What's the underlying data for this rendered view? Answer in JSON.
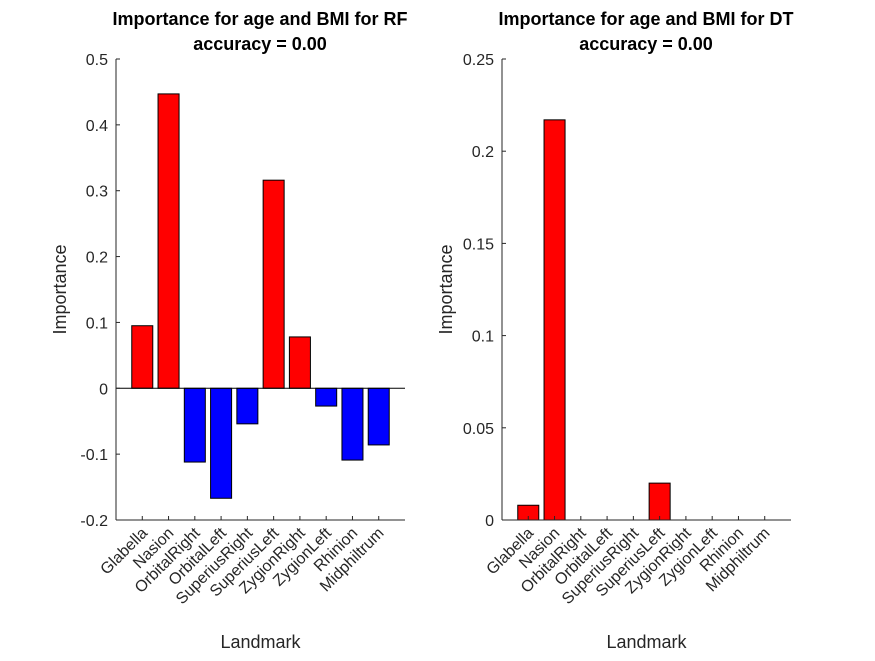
{
  "colors": {
    "positive": "#ff0000",
    "negative": "#0000ff",
    "axis": "#262626"
  },
  "chart_data": [
    {
      "type": "bar",
      "title": "Importance for age and BMI for RF",
      "subtitle": "accuracy = 0.00",
      "xlabel": "Landmark",
      "ylabel": "Importance",
      "categories": [
        "Glabella",
        "Nasion",
        "OrbitalRight",
        "OrbitalLeft",
        "SuperiusRight",
        "SuperiusLeft",
        "ZygionRight",
        "ZygionLeft",
        "Rhinion",
        "Midphiltrum"
      ],
      "values": [
        0.095,
        0.447,
        -0.112,
        -0.167,
        -0.054,
        0.316,
        0.078,
        -0.027,
        -0.109,
        -0.086
      ],
      "ylim": [
        -0.2,
        0.5
      ],
      "yticks": [
        -0.2,
        -0.1,
        0,
        0.1,
        0.2,
        0.3,
        0.4,
        0.5
      ],
      "ytick_labels": [
        "-0.2",
        "-0.1",
        "0",
        "0.1",
        "0.2",
        "0.3",
        "0.4",
        "0.5"
      ],
      "grid": false,
      "legend": "none"
    },
    {
      "type": "bar",
      "title": "Importance for age and BMI for DT",
      "subtitle": "accuracy = 0.00",
      "xlabel": "Landmark",
      "ylabel": "Importance",
      "categories": [
        "Glabella",
        "Nasion",
        "OrbitalRight",
        "OrbitalLeft",
        "SuperiusRight",
        "SuperiusLeft",
        "ZygionRight",
        "ZygionLeft",
        "Rhinion",
        "Midphiltrum"
      ],
      "values": [
        0.008,
        0.217,
        0,
        0,
        0,
        0.02,
        0,
        0,
        0,
        0
      ],
      "ylim": [
        0,
        0.25
      ],
      "yticks": [
        0,
        0.05,
        0.1,
        0.15,
        0.2,
        0.25
      ],
      "ytick_labels": [
        "0",
        "0.05",
        "0.1",
        "0.15",
        "0.2",
        "0.25"
      ],
      "grid": false,
      "legend": "none"
    }
  ]
}
